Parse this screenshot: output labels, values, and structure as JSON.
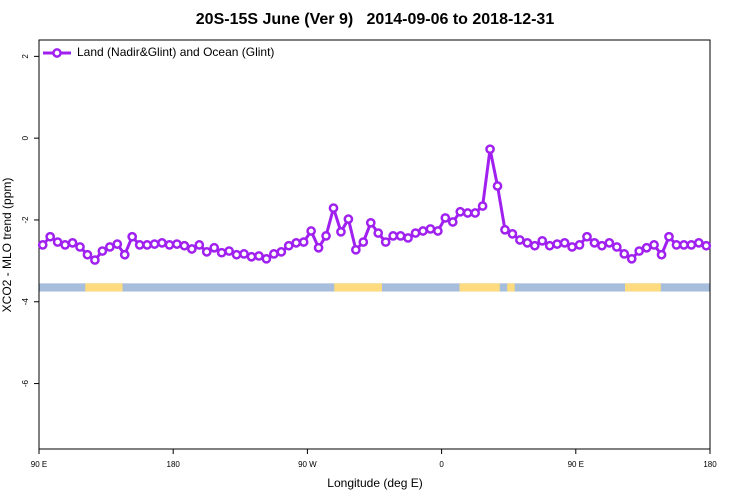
{
  "chart_data": {
    "type": "line",
    "title": "20S-15S June (Ver 9)   2014-09-06 to 2018-12-31",
    "x_label": "Longitude (deg E)",
    "y_label": "XCO2 - MLO trend (ppm)",
    "xlim": [
      90,
      540
    ],
    "ylim": [
      -7.6,
      2.4
    ],
    "xticks": [
      {
        "value": 90,
        "label": "90 E"
      },
      {
        "value": 180,
        "label": "180"
      },
      {
        "value": 270,
        "label": "90 W"
      },
      {
        "value": 360,
        "label": "0"
      },
      {
        "value": 450,
        "label": "90 E"
      },
      {
        "value": 540,
        "label": "180"
      }
    ],
    "yticks": [
      2,
      0,
      -2,
      -4,
      -6
    ],
    "legend": "top-left",
    "series": [
      {
        "name": "Land (Nadir&Glint) and Ocean (Glint)",
        "color": "#a020f0",
        "x": [
          92.5,
          97.5,
          102.5,
          107.5,
          112.5,
          117.5,
          122.5,
          127.5,
          132.5,
          137.5,
          142.5,
          147.5,
          152.5,
          157.5,
          162.5,
          167.5,
          172.5,
          177.5,
          182.5,
          187.5,
          192.5,
          197.5,
          202.5,
          207.5,
          212.5,
          217.5,
          222.5,
          227.5,
          232.5,
          237.5,
          242.5,
          247.5,
          252.5,
          257.5,
          262.5,
          267.5,
          272.5,
          277.5,
          282.5,
          287.5,
          292.5,
          297.5,
          302.5,
          307.5,
          312.5,
          317.5,
          322.5,
          327.5,
          332.5,
          337.5,
          342.5,
          347.5,
          352.5,
          357.5,
          362.5,
          367.5,
          372.5,
          377.5,
          382.5,
          387.5,
          392.5,
          397.5,
          402.5,
          407.5,
          412.5,
          417.5,
          422.5,
          427.5,
          432.5,
          437.5,
          442.5,
          447.5,
          452.5,
          457.5,
          462.5,
          467.5,
          472.5,
          477.5,
          482.5,
          487.5,
          492.5,
          497.5,
          502.5,
          507.5,
          512.5,
          517.5,
          522.5,
          527.5,
          532.5,
          537.5
        ],
        "values": [
          -2.61,
          -2.41,
          -2.54,
          -2.61,
          -2.56,
          -2.66,
          -2.85,
          -2.98,
          -2.76,
          -2.66,
          -2.59,
          -2.85,
          -2.41,
          -2.61,
          -2.61,
          -2.59,
          -2.56,
          -2.61,
          -2.59,
          -2.63,
          -2.71,
          -2.61,
          -2.78,
          -2.68,
          -2.8,
          -2.76,
          -2.85,
          -2.83,
          -2.9,
          -2.88,
          -2.95,
          -2.83,
          -2.78,
          -2.63,
          -2.56,
          -2.54,
          -2.27,
          -2.68,
          -2.39,
          -1.71,
          -2.29,
          -1.98,
          -2.73,
          -2.54,
          -2.07,
          -2.32,
          -2.54,
          -2.39,
          -2.39,
          -2.44,
          -2.32,
          -2.27,
          -2.22,
          -2.27,
          -1.95,
          -2.05,
          -1.8,
          -1.83,
          -1.83,
          -1.66,
          -0.27,
          -1.17,
          -2.24,
          -2.34,
          -2.49,
          -2.56,
          -2.63,
          -2.51,
          -2.63,
          -2.59,
          -2.56,
          -2.66,
          -2.61,
          -2.41,
          -2.56,
          -2.63,
          -2.56,
          -2.66,
          -2.83,
          -2.95,
          -2.76,
          -2.68,
          -2.61,
          -2.85,
          -2.41,
          -2.61,
          -2.61,
          -2.61,
          -2.56,
          -2.63
        ]
      }
    ],
    "land_mask": {
      "y": [
        -3.75,
        -3.55
      ],
      "ocean_color": "#a6bddb",
      "land_color": "#fddb7e",
      "land": [
        [
          121,
          146
        ],
        [
          288,
          320
        ],
        [
          372,
          399
        ],
        [
          404,
          409
        ],
        [
          483,
          507
        ]
      ]
    }
  }
}
